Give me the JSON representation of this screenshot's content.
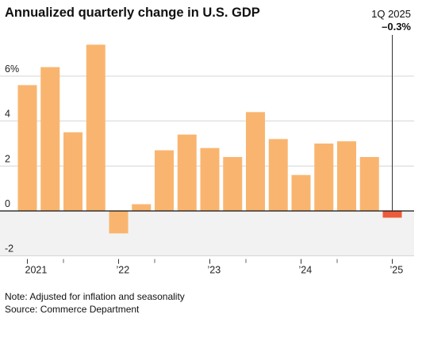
{
  "footnotes": {
    "note": "Note: Adjusted for inflation and seasonality",
    "source": "Source: Commerce Department"
  },
  "chart_data": {
    "type": "bar",
    "title": "Annualized quarterly change in U.S. GDP",
    "xlabel": "",
    "ylabel": "",
    "ylim": [
      -2,
      7
    ],
    "y_ticks": [
      6,
      4,
      2,
      0,
      -2
    ],
    "y_tick_labels": [
      "6%",
      "4",
      "2",
      "0",
      "-2"
    ],
    "x_tick_labels": [
      {
        "index": 0,
        "label": "2021"
      },
      {
        "index": 4,
        "label": "’22"
      },
      {
        "index": 8,
        "label": "’23"
      },
      {
        "index": 12,
        "label": "’24"
      },
      {
        "index": 16,
        "label": "’25"
      }
    ],
    "categories": [
      "1Q 2021",
      "2Q 2021",
      "3Q 2021",
      "4Q 2021",
      "1Q 2022",
      "2Q 2022",
      "3Q 2022",
      "4Q 2022",
      "1Q 2023",
      "2Q 2023",
      "3Q 2023",
      "4Q 2023",
      "1Q 2024",
      "2Q 2024",
      "3Q 2024",
      "4Q 2024",
      "1Q 2025"
    ],
    "values": [
      5.6,
      6.4,
      3.5,
      7.4,
      -1.0,
      0.3,
      2.7,
      3.4,
      2.8,
      2.4,
      4.4,
      3.2,
      1.6,
      3.0,
      3.1,
      2.4,
      -0.3
    ],
    "highlight": {
      "index": 16,
      "label": "1Q 2025",
      "value_label": "–0.3%"
    },
    "colors": {
      "bar": "#f9b56f",
      "highlight": "#ee5a3c",
      "negative_band": "#f2f2f2",
      "grid": "#d4d4d4"
    },
    "grid": true
  }
}
